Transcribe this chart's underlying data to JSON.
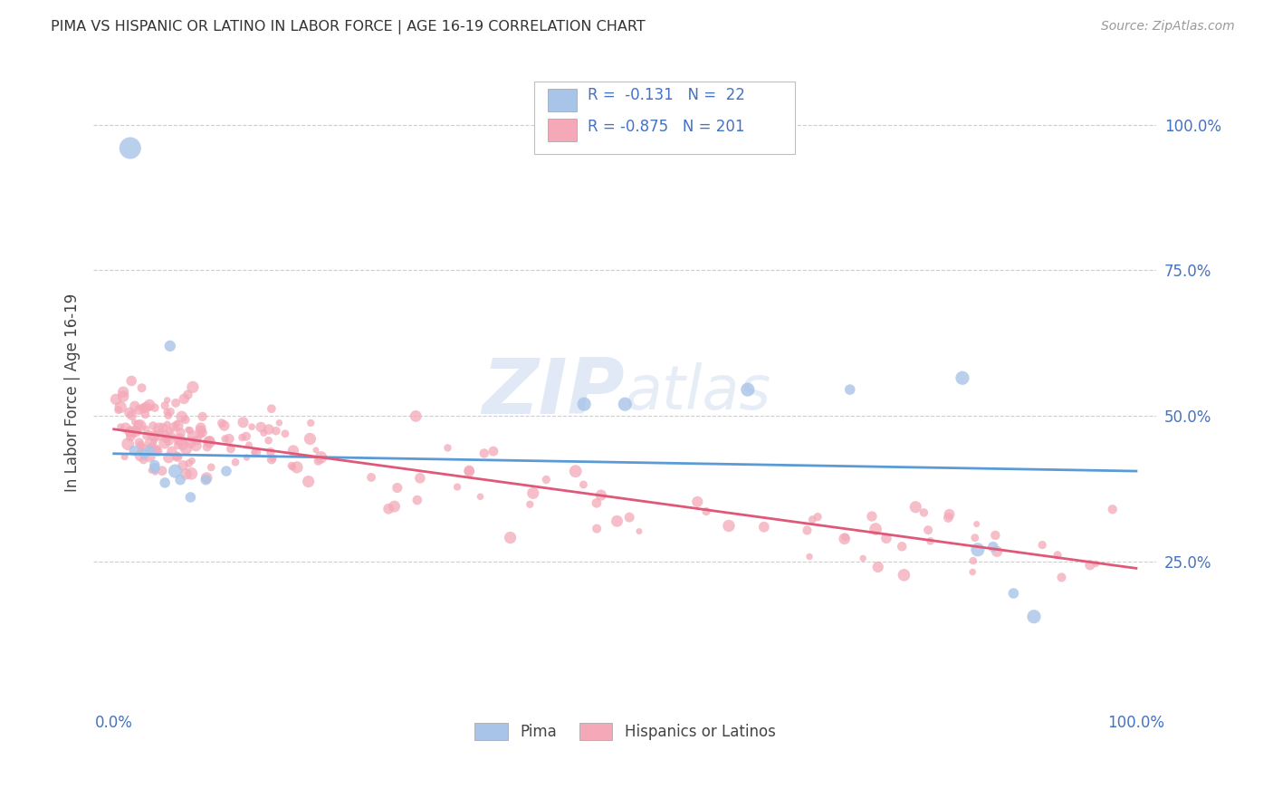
{
  "title": "PIMA VS HISPANIC OR LATINO IN LABOR FORCE | AGE 16-19 CORRELATION CHART",
  "source": "Source: ZipAtlas.com",
  "ylabel": "In Labor Force | Age 16-19",
  "legend_r1": "R =  -0.131",
  "legend_n1": "N =  22",
  "legend_r2": "R = -0.875",
  "legend_n2": "N = 201",
  "blue_scatter_color": "#a8c4e8",
  "pink_scatter_color": "#f4a8b8",
  "blue_line_color": "#5b9bd5",
  "pink_line_color": "#e05878",
  "blue_text_color": "#4472c4",
  "watermark_color": "#d0dff0",
  "background_color": "#ffffff",
  "grid_color": "#c8c8c8",
  "pima_line_y0": 0.435,
  "pima_line_y1": 0.405,
  "hisp_line_y0": 0.477,
  "hisp_line_y1": 0.238,
  "xlim": [
    -0.02,
    1.02
  ],
  "ylim": [
    0.0,
    1.08
  ]
}
